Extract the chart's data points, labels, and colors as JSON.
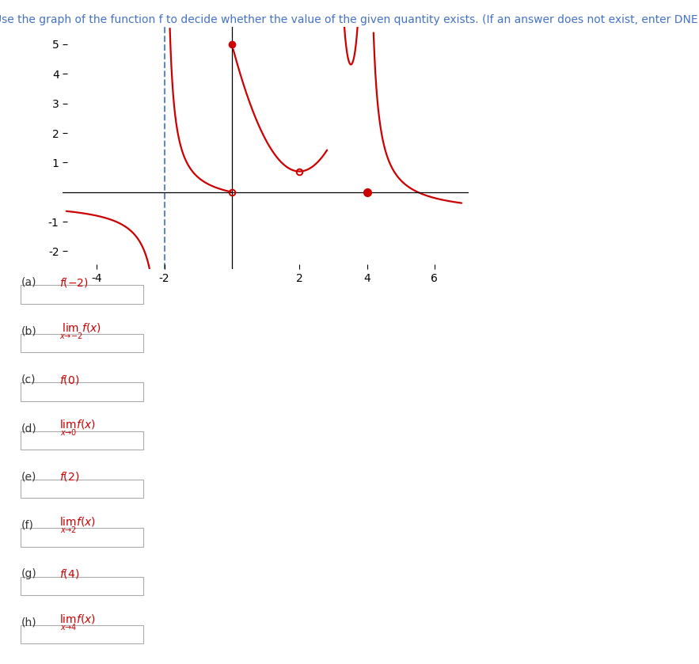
{
  "title": "Use the graph of the function f to decide whether the value of the given quantity exists. (If an answer does not exist, enter DNE.)",
  "title_color": "#4472c4",
  "title_fontsize": 10,
  "curve_color": "#cc0000",
  "dashed_color": "#4472c4",
  "xlim": [
    -5,
    7
  ],
  "ylim": [
    -2.6,
    5.6
  ],
  "xticks": [
    -4,
    -2,
    2,
    4,
    6
  ],
  "yticks": [
    -2,
    -1,
    1,
    2,
    3,
    4,
    5
  ],
  "q_labels": [
    "(a)",
    "(b)",
    "(c)",
    "(d)",
    "(e)",
    "(f)",
    "(g)",
    "(h)"
  ],
  "q_color": "#cc0000",
  "q_label_color": "#333333",
  "box_edge_color": "#aaaaaa"
}
